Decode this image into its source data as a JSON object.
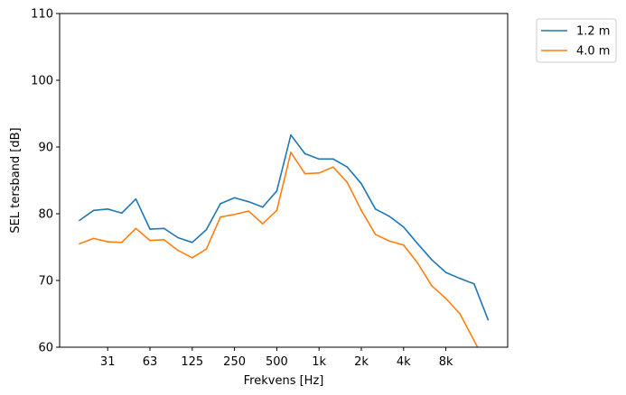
{
  "chart_data": {
    "type": "line",
    "title": "",
    "xlabel": "Frekvens [Hz]",
    "ylabel": "SEL tersband [dB]",
    "ylim": [
      60,
      110
    ],
    "yticks": [
      60,
      70,
      80,
      90,
      100,
      110
    ],
    "x": [
      "20",
      "25",
      "31.5",
      "40",
      "50",
      "63",
      "80",
      "100",
      "125",
      "160",
      "200",
      "250",
      "315",
      "400",
      "500",
      "630",
      "800",
      "1000",
      "1250",
      "1600",
      "2000",
      "2500",
      "3150",
      "4000",
      "5000",
      "6300",
      "8000",
      "10000",
      "12500",
      "16000"
    ],
    "xtick_labels": [
      "31",
      "63",
      "125",
      "250",
      "500",
      "1k",
      "2k",
      "4k",
      "8k"
    ],
    "xtick_positions": [
      2,
      5,
      8,
      11,
      14,
      17,
      20,
      23,
      26
    ],
    "legend_position": "outside top-right",
    "grid": false,
    "series": [
      {
        "name": "1.2 m",
        "color": "#1f77b4",
        "values": [
          79.0,
          80.5,
          80.7,
          80.1,
          82.2,
          77.7,
          77.8,
          76.4,
          75.7,
          77.6,
          81.5,
          82.4,
          81.8,
          81.0,
          83.4,
          91.8,
          89.0,
          88.2,
          88.2,
          87.0,
          84.5,
          80.7,
          79.6,
          78.0,
          75.5,
          73.1,
          71.2,
          70.3,
          69.5,
          64.1
        ]
      },
      {
        "name": "4.0 m",
        "color": "#ff7f0e",
        "values": [
          75.5,
          76.3,
          75.8,
          75.7,
          77.8,
          76.0,
          76.1,
          74.5,
          73.4,
          74.7,
          79.5,
          79.9,
          80.4,
          78.5,
          80.5,
          89.2,
          86.0,
          86.1,
          87.0,
          84.7,
          80.5,
          76.9,
          75.9,
          75.3,
          72.6,
          69.2,
          67.3,
          65.0,
          61.0,
          57.0
        ]
      }
    ]
  }
}
